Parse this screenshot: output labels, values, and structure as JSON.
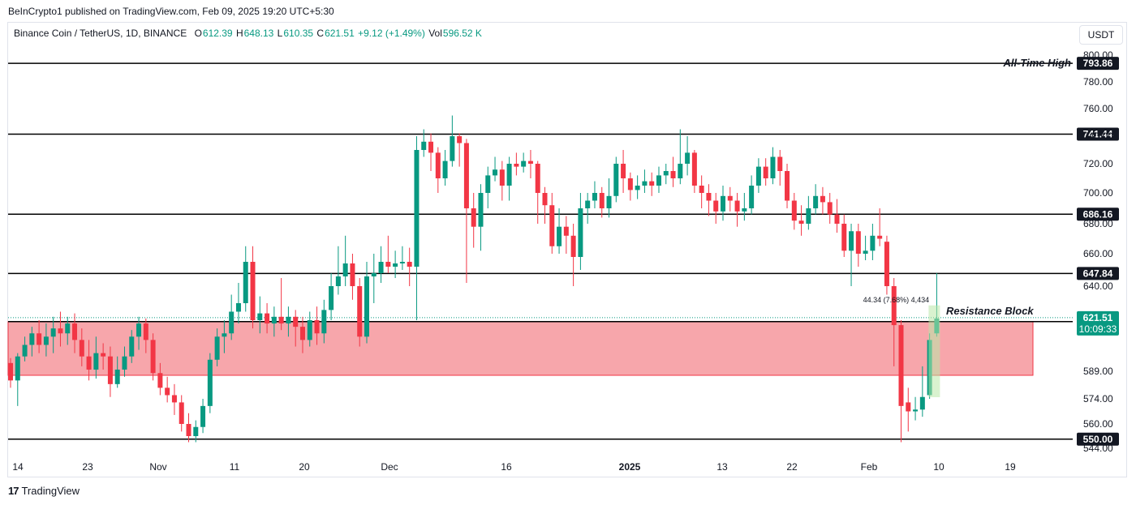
{
  "header": {
    "published": "BeInCrypto1 published on TradingView.com, Feb 09, 2025 19:20 UTC+5:30"
  },
  "legend": {
    "symbol": "Binance Coin / TetherUS, 1D, BINANCE",
    "open_label": "O",
    "open": "612.39",
    "high_label": "H",
    "high": "648.13",
    "low_label": "L",
    "low": "610.35",
    "close_label": "C",
    "close": "621.51",
    "change": "+9.12 (+1.49%)",
    "vol_label": "Vol",
    "vol": "596.52 K"
  },
  "currency": "USDT",
  "footer": {
    "brand": "TradingView",
    "logo_mark": "17"
  },
  "colors": {
    "up": "#089981",
    "down": "#f23645",
    "zone": "#f7a6ab",
    "zone_border": "#f23645",
    "grid_line": "#000000"
  },
  "chart_data": {
    "type": "candlestick",
    "price_ticks": [
      "800.00",
      "780.00",
      "760.00",
      "740.00",
      "720.00",
      "700.00",
      "680.00",
      "660.00",
      "640.00",
      "589.00",
      "574.00",
      "560.00",
      "544.00"
    ],
    "x_ticks": [
      "14",
      "23",
      "Nov",
      "11",
      "20",
      "Dec",
      "16",
      "2025",
      "13",
      "22",
      "Feb",
      "10",
      "19"
    ],
    "bold_x_tick": "2025",
    "levels": [
      {
        "label": "793.86",
        "annotation": "All-Time High"
      },
      {
        "label": "741.44"
      },
      {
        "label": "686.16"
      },
      {
        "label": "647.84"
      },
      {
        "label": "619.13"
      },
      {
        "label": "550.00"
      }
    ],
    "current_price": {
      "price": "621.51",
      "countdown": "10:09:33"
    },
    "zone": {
      "label": "Resistance Block"
    },
    "measure": {
      "label": "44.34 (7.68%) 4,434"
    },
    "candles": [
      [
        594,
        584,
        597,
        580
      ],
      [
        584,
        598,
        600,
        570
      ],
      [
        598,
        605,
        610,
        595
      ],
      [
        605,
        612,
        616,
        598
      ],
      [
        612,
        605,
        620,
        600
      ],
      [
        605,
        610,
        618,
        598
      ],
      [
        610,
        615,
        622,
        600
      ],
      [
        615,
        612,
        625,
        604
      ],
      [
        612,
        618,
        622,
        605
      ],
      [
        618,
        608,
        624,
        600
      ],
      [
        608,
        598,
        615,
        592
      ],
      [
        598,
        590,
        608,
        584
      ],
      [
        590,
        600,
        610,
        585
      ],
      [
        600,
        598,
        606,
        590
      ],
      [
        598,
        582,
        604,
        575
      ],
      [
        582,
        590,
        598,
        580
      ],
      [
        590,
        598,
        604,
        586
      ],
      [
        598,
        610,
        614,
        594
      ],
      [
        610,
        618,
        622,
        602
      ],
      [
        618,
        608,
        621,
        600
      ],
      [
        608,
        588,
        612,
        584
      ],
      [
        588,
        580,
        594,
        576
      ],
      [
        580,
        576,
        586,
        572
      ],
      [
        576,
        572,
        582,
        565
      ],
      [
        572,
        560,
        576,
        555
      ],
      [
        560,
        552,
        566,
        548
      ],
      [
        552,
        558,
        562,
        548
      ],
      [
        558,
        570,
        574,
        554
      ],
      [
        570,
        596,
        600,
        566
      ],
      [
        596,
        610,
        615,
        592
      ],
      [
        610,
        612,
        620,
        600
      ],
      [
        612,
        625,
        635,
        608
      ],
      [
        625,
        630,
        642,
        618
      ],
      [
        630,
        655,
        665,
        625
      ],
      [
        655,
        620,
        665,
        615
      ],
      [
        620,
        624,
        634,
        612
      ],
      [
        624,
        618,
        630,
        612
      ],
      [
        618,
        622,
        628,
        610
      ],
      [
        622,
        618,
        645,
        614
      ],
      [
        618,
        622,
        628,
        610
      ],
      [
        622,
        616,
        626,
        604
      ],
      [
        616,
        608,
        622,
        600
      ],
      [
        608,
        620,
        625,
        604
      ],
      [
        620,
        612,
        628,
        605
      ],
      [
        612,
        626,
        632,
        606
      ],
      [
        626,
        640,
        648,
        620
      ],
      [
        640,
        646,
        665,
        635
      ],
      [
        646,
        654,
        672,
        640
      ],
      [
        654,
        640,
        660,
        632
      ],
      [
        640,
        610,
        645,
        604
      ],
      [
        610,
        646,
        655,
        606
      ],
      [
        646,
        648,
        660,
        630
      ],
      [
        648,
        655,
        665,
        642
      ],
      [
        655,
        652,
        672,
        648
      ],
      [
        652,
        654,
        662,
        645
      ],
      [
        654,
        655,
        665,
        650
      ],
      [
        655,
        652,
        664,
        640
      ],
      [
        652,
        730,
        740,
        620
      ],
      [
        730,
        736,
        745,
        725
      ],
      [
        736,
        728,
        742,
        715
      ],
      [
        728,
        710,
        732,
        700
      ],
      [
        710,
        722,
        730,
        705
      ],
      [
        722,
        740,
        755,
        718
      ],
      [
        740,
        735,
        742,
        718
      ],
      [
        735,
        690,
        738,
        642
      ],
      [
        690,
        678,
        700,
        664
      ],
      [
        678,
        700,
        706,
        662
      ],
      [
        700,
        712,
        718,
        690
      ],
      [
        712,
        716,
        725,
        708
      ],
      [
        716,
        705,
        722,
        695
      ],
      [
        705,
        720,
        725,
        695
      ],
      [
        720,
        718,
        728,
        712
      ],
      [
        718,
        722,
        728,
        714
      ],
      [
        722,
        720,
        730,
        710
      ],
      [
        720,
        700,
        722,
        680
      ],
      [
        700,
        692,
        704,
        680
      ],
      [
        692,
        665,
        700,
        660
      ],
      [
        665,
        678,
        690,
        660
      ],
      [
        678,
        672,
        685,
        660
      ],
      [
        672,
        658,
        680,
        640
      ],
      [
        658,
        690,
        700,
        650
      ],
      [
        690,
        695,
        700,
        680
      ],
      [
        695,
        700,
        708,
        690
      ],
      [
        700,
        690,
        704,
        684
      ],
      [
        690,
        698,
        710,
        684
      ],
      [
        698,
        720,
        725,
        694
      ],
      [
        720,
        710,
        730,
        700
      ],
      [
        710,
        702,
        714,
        695
      ],
      [
        702,
        705,
        712,
        696
      ],
      [
        705,
        708,
        716,
        700
      ],
      [
        708,
        705,
        714,
        698
      ],
      [
        705,
        712,
        718,
        700
      ],
      [
        712,
        715,
        720,
        706
      ],
      [
        715,
        710,
        725,
        704
      ],
      [
        710,
        720,
        745,
        706
      ],
      [
        720,
        728,
        740,
        712
      ],
      [
        728,
        705,
        730,
        700
      ],
      [
        705,
        700,
        712,
        690
      ],
      [
        700,
        695,
        706,
        685
      ],
      [
        695,
        688,
        700,
        680
      ],
      [
        688,
        698,
        705,
        682
      ],
      [
        698,
        695,
        704,
        688
      ],
      [
        695,
        688,
        700,
        678
      ],
      [
        688,
        690,
        700,
        682
      ],
      [
        690,
        705,
        712,
        686
      ],
      [
        705,
        718,
        724,
        700
      ],
      [
        718,
        710,
        724,
        705
      ],
      [
        710,
        725,
        732,
        706
      ],
      [
        725,
        715,
        730,
        705
      ],
      [
        715,
        695,
        720,
        690
      ],
      [
        695,
        682,
        700,
        676
      ],
      [
        682,
        680,
        692,
        672
      ],
      [
        680,
        690,
        698,
        676
      ],
      [
        690,
        698,
        706,
        686
      ],
      [
        698,
        694,
        704,
        686
      ],
      [
        694,
        686,
        700,
        680
      ],
      [
        686,
        680,
        696,
        674
      ],
      [
        680,
        662,
        686,
        658
      ],
      [
        662,
        675,
        680,
        640
      ],
      [
        675,
        660,
        680,
        652
      ],
      [
        660,
        662,
        672,
        656
      ],
      [
        662,
        672,
        680,
        656
      ],
      [
        672,
        670,
        690,
        665
      ],
      [
        668,
        640,
        672,
        635
      ],
      [
        640,
        617,
        645,
        592
      ],
      [
        617,
        570,
        620,
        548
      ],
      [
        572,
        567,
        580,
        555
      ],
      [
        567,
        568,
        575,
        562
      ],
      [
        568,
        575,
        592,
        564
      ],
      [
        576,
        608,
        612,
        574
      ],
      [
        612,
        621,
        648,
        610
      ]
    ]
  }
}
